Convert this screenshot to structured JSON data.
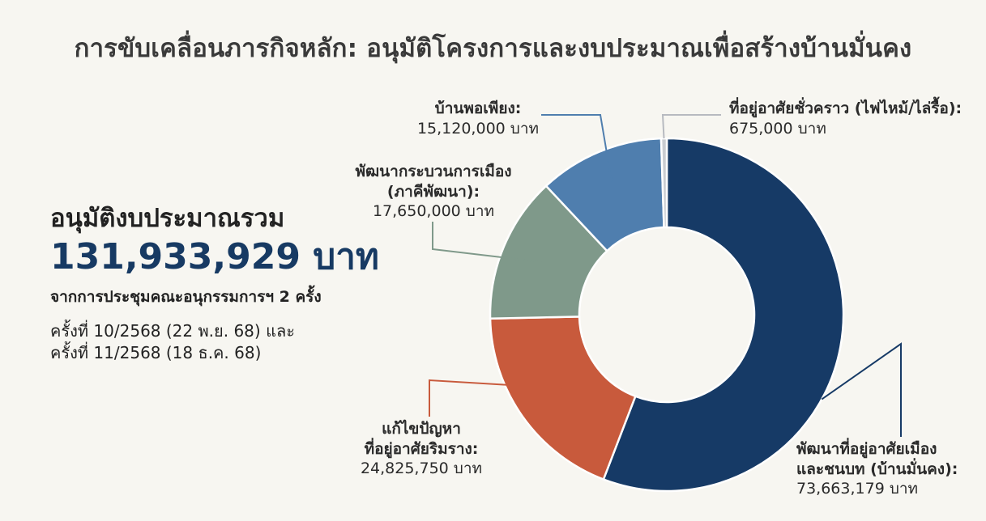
{
  "title": "การขับเคลื่อนภารกิจหลัก: อนุมัติโครงการและงบประมาณเพื่อสร้างบ้านมั่นคง",
  "summary": {
    "label": "อนุมัติงบประมาณรวม",
    "amount": "131,933,929 บาท",
    "source": "จากการประชุมคณะอนุกรรมการฯ 2 ครั้ง",
    "meetings": [
      "ครั้งที่ 10/2568 (22 พ.ย. 68) และ",
      "ครั้งที่ 11/2568 (18 ธ.ค. 68)"
    ]
  },
  "chart_data": {
    "type": "pie",
    "donut": true,
    "unit": "บาท",
    "total": 131933929,
    "slices": [
      {
        "label_lines": [
          "พัฒนาที่อยู่อาศัยเมือง",
          "และชนบท (บ้านมั่นคง):"
        ],
        "value": 73663179,
        "value_text": "73,663,179 บาท",
        "color": "#163a66"
      },
      {
        "label_lines": [
          "แก้ไขปัญหา",
          "ที่อยู่อาศัยริมราง:"
        ],
        "value": 24825750,
        "value_text": "24,825,750 บาท",
        "color": "#c85a3c"
      },
      {
        "label_lines": [
          "พัฒนากระบวนการเมือง",
          "(ภาคีพัฒนา):"
        ],
        "value": 17650000,
        "value_text": "17,650,000 บาท",
        "color": "#7f998a"
      },
      {
        "label_lines": [
          "บ้านพอเพียง:"
        ],
        "value": 15120000,
        "value_text": "15,120,000 บาท",
        "color": "#4f7eae"
      },
      {
        "label_lines": [
          "ที่อยู่อาศัยชั่วคราว (ไฟไหม้/ไล่รื้อ):"
        ],
        "value": 675000,
        "value_text": "675,000 บาท",
        "color": "#c9ccd1"
      }
    ]
  }
}
